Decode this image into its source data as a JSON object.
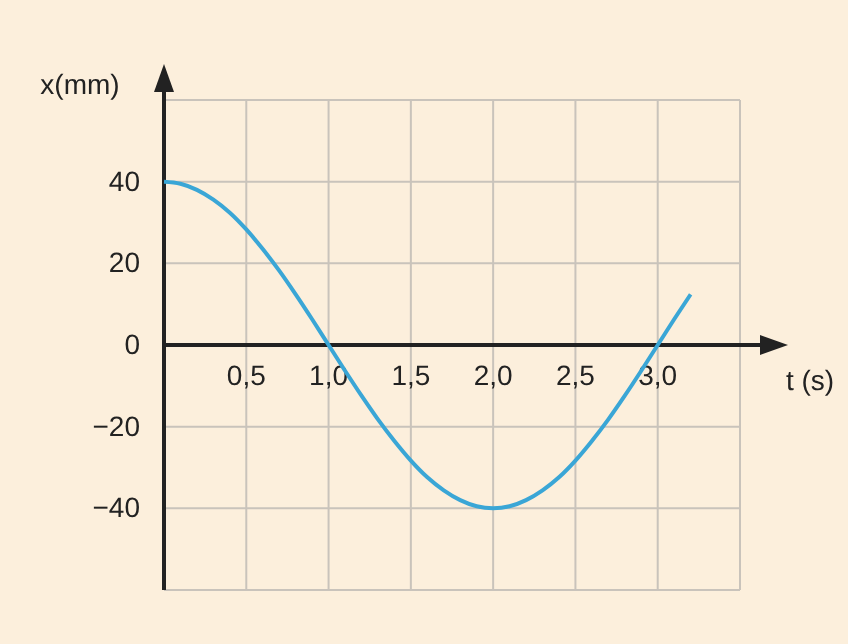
{
  "chart_data": {
    "type": "line",
    "xlabel": "t (s)",
    "ylabel": "x(mm)",
    "x": [
      0,
      0.1,
      0.2,
      0.3,
      0.4,
      0.5,
      0.6,
      0.7,
      0.8,
      0.9,
      1.0,
      1.1,
      1.2,
      1.3,
      1.4,
      1.5,
      1.6,
      1.7,
      1.8,
      1.9,
      2.0,
      2.1,
      2.2,
      2.3,
      2.4,
      2.5,
      2.6,
      2.7,
      2.8,
      2.9,
      3.0,
      3.1,
      3.2
    ],
    "series": [
      {
        "color": "#3aa6d6",
        "values": [
          40,
          39.5,
          38,
          35.6,
          32.4,
          28.3,
          23.5,
          18.2,
          12.4,
          6.3,
          0,
          -6.3,
          -12.4,
          -18.2,
          -23.5,
          -28.3,
          -32.4,
          -35.6,
          -38,
          -39.5,
          -40,
          -39.5,
          -38,
          -35.6,
          -32.4,
          -28.3,
          -23.5,
          -18.2,
          -12.4,
          -6.3,
          0,
          6.3,
          12.4
        ]
      }
    ],
    "xlim": [
      0,
      3.5
    ],
    "xticks": [
      {
        "value": 0.5,
        "label": "0,5"
      },
      {
        "value": 1,
        "label": "1,0"
      },
      {
        "value": 1.5,
        "label": "1,5"
      },
      {
        "value": 2,
        "label": "2,0"
      },
      {
        "value": 2.5,
        "label": "2,5"
      },
      {
        "value": 3,
        "label": "3,0"
      },
      {
        "value": 3.5,
        "label": null
      }
    ],
    "ylim": [
      -60,
      60
    ],
    "yticks": [
      {
        "value": -60,
        "label": null
      },
      {
        "value": -40,
        "label": "−40"
      },
      {
        "value": -20,
        "label": "−20"
      },
      {
        "value": 0,
        "label": "0"
      },
      {
        "value": 20,
        "label": "20"
      },
      {
        "value": 40,
        "label": "40"
      },
      {
        "value": 60,
        "label": null
      }
    ],
    "grid": true,
    "marker": "none",
    "line_style": "solid"
  }
}
